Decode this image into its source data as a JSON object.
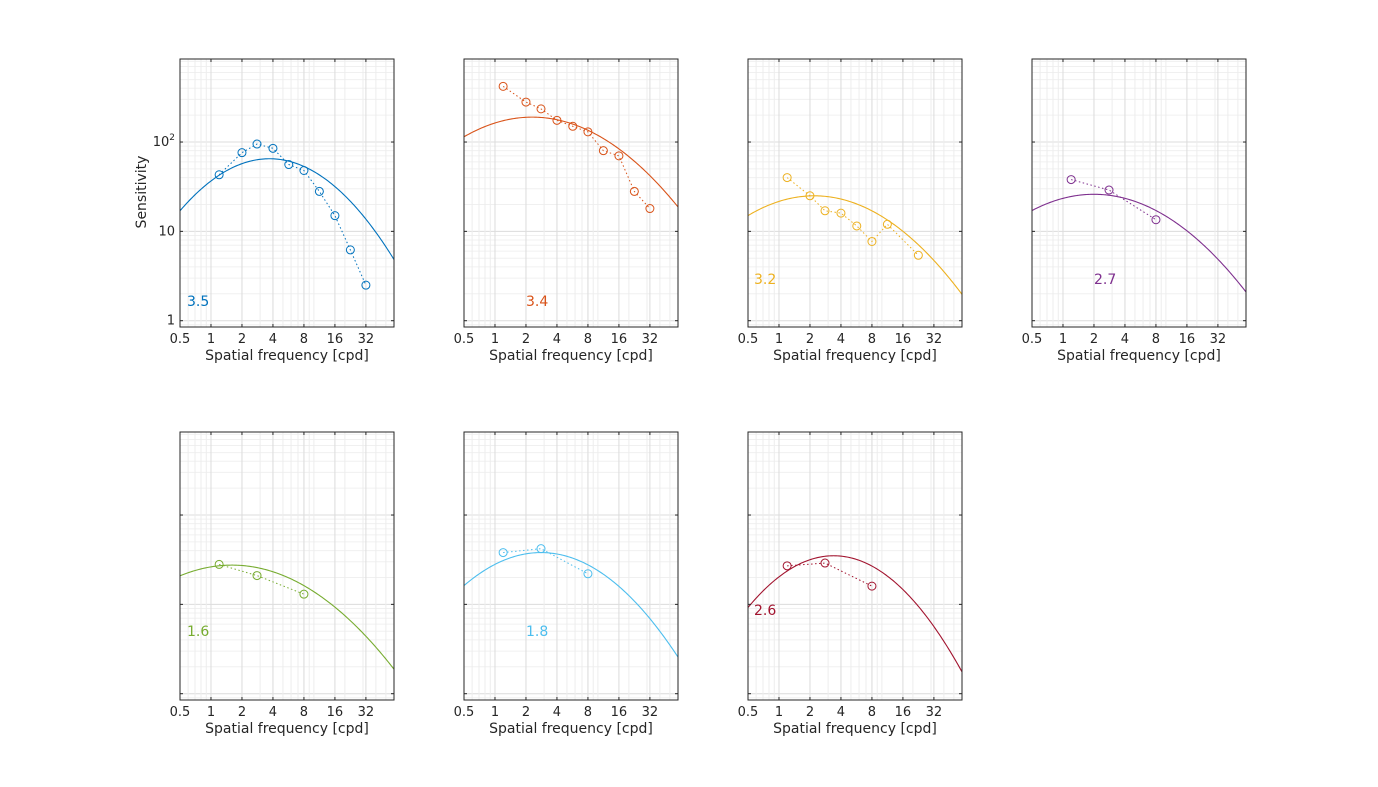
{
  "figure": {
    "shared_xlabel": "Spatial frequency [cpd]",
    "shared_ylabel": "Sensitivity"
  },
  "chart_data": [
    {
      "type": "line",
      "panel_label": "3.5",
      "color": "#0072BD",
      "xlabel": "Spatial frequency [cpd]",
      "ylabel": "Sensitivity",
      "xscale": "log",
      "yscale": "log",
      "xlim": [
        0.5,
        60
      ],
      "ylim": [
        0.85,
        850
      ],
      "xticks": [
        "0.5",
        "1",
        "2",
        "4",
        "8",
        "16",
        "32"
      ],
      "yticks": [
        "1",
        "10",
        "10^2"
      ],
      "grid": true,
      "series": [
        {
          "kind": "measured",
          "marker": "circle",
          "line": "dotted",
          "x": [
            1.2,
            2.0,
            2.8,
            4.0,
            5.7,
            8.0,
            11.3,
            16,
            22.6,
            32
          ],
          "y": [
            43,
            76,
            95,
            85,
            56,
            48,
            28,
            15,
            6.2,
            2.5
          ]
        },
        {
          "kind": "fit",
          "line": "solid",
          "peak_frequency": 3.7,
          "peak_sensitivity": 65,
          "log_bandwidth": 1.25
        }
      ]
    },
    {
      "type": "line",
      "panel_label": "3.4",
      "color": "#D95319",
      "xlabel": "Spatial frequency [cpd]",
      "xscale": "log",
      "yscale": "log",
      "xlim": [
        0.5,
        60
      ],
      "ylim": [
        0.85,
        850
      ],
      "xticks": [
        "0.5",
        "1",
        "2",
        "4",
        "8",
        "16",
        "32"
      ],
      "grid": true,
      "series": [
        {
          "kind": "measured",
          "marker": "circle",
          "line": "dotted",
          "x": [
            1.2,
            2.0,
            2.8,
            4.0,
            5.7,
            8.0,
            11.3,
            16,
            22.6,
            32
          ],
          "y": [
            420,
            280,
            235,
            175,
            150,
            130,
            80,
            70,
            28,
            18
          ]
        },
        {
          "kind": "fit",
          "line": "solid",
          "peak_frequency": 2.3,
          "peak_sensitivity": 190,
          "log_bandwidth": 1.55
        }
      ]
    },
    {
      "type": "line",
      "panel_label": "3.2",
      "color": "#EDB120",
      "xlabel": "Spatial frequency [cpd]",
      "xscale": "log",
      "yscale": "log",
      "xlim": [
        0.5,
        60
      ],
      "ylim": [
        0.85,
        850
      ],
      "xticks": [
        "0.5",
        "1",
        "2",
        "4",
        "8",
        "16",
        "32"
      ],
      "grid": true,
      "series": [
        {
          "kind": "measured",
          "marker": "circle",
          "line": "dotted",
          "x": [
            1.2,
            2.0,
            2.8,
            4.0,
            5.7,
            8.0,
            11.3,
            22.6
          ],
          "y": [
            40,
            25,
            17,
            16,
            11.5,
            7.7,
            12,
            5.4
          ]
        },
        {
          "kind": "fit",
          "line": "solid",
          "peak_frequency": 2.2,
          "peak_sensitivity": 25,
          "log_bandwidth": 1.5
        }
      ]
    },
    {
      "type": "line",
      "panel_label": "2.7",
      "color": "#7E2F8E",
      "xlabel": "Spatial frequency [cpd]",
      "xscale": "log",
      "yscale": "log",
      "xlim": [
        0.5,
        60
      ],
      "ylim": [
        0.85,
        850
      ],
      "xticks": [
        "0.5",
        "1",
        "2",
        "4",
        "8",
        "16",
        "32"
      ],
      "grid": true,
      "series": [
        {
          "kind": "measured",
          "marker": "circle",
          "line": "dotted",
          "x": [
            1.2,
            2.8,
            8.0
          ],
          "y": [
            38,
            29,
            13.5
          ]
        },
        {
          "kind": "fit",
          "line": "solid",
          "peak_frequency": 2.0,
          "peak_sensitivity": 26,
          "log_bandwidth": 1.55
        }
      ]
    },
    {
      "type": "line",
      "panel_label": "1.6",
      "color": "#77AC30",
      "xlabel": "Spatial frequency [cpd]",
      "xscale": "log",
      "yscale": "log",
      "xlim": [
        0.5,
        60
      ],
      "ylim": [
        0.085,
        85
      ],
      "xticks": [
        "0.5",
        "1",
        "2",
        "4",
        "8",
        "16",
        "32"
      ],
      "grid": true,
      "series": [
        {
          "kind": "measured",
          "marker": "circle",
          "line": "dotted",
          "x": [
            1.2,
            2.8,
            8.0
          ],
          "y": [
            2.8,
            2.1,
            1.3
          ]
        },
        {
          "kind": "fit",
          "line": "solid",
          "peak_frequency": 1.6,
          "peak_sensitivity": 2.75,
          "log_bandwidth": 1.6
        }
      ]
    },
    {
      "type": "line",
      "panel_label": "1.8",
      "color": "#4DBEEE",
      "xlabel": "Spatial frequency [cpd]",
      "xscale": "log",
      "yscale": "log",
      "xlim": [
        0.5,
        60
      ],
      "ylim": [
        0.085,
        85
      ],
      "xticks": [
        "0.5",
        "1",
        "2",
        "4",
        "8",
        "16",
        "32"
      ],
      "grid": true,
      "series": [
        {
          "kind": "measured",
          "marker": "circle",
          "line": "dotted",
          "x": [
            1.2,
            2.8,
            8.0
          ],
          "y": [
            3.8,
            4.2,
            2.2
          ]
        },
        {
          "kind": "fit",
          "line": "solid",
          "peak_frequency": 2.8,
          "peak_sensitivity": 3.8,
          "log_bandwidth": 1.35
        }
      ]
    },
    {
      "type": "line",
      "panel_label": "2.6",
      "color": "#A2142F",
      "xlabel": "Spatial frequency [cpd]",
      "xscale": "log",
      "yscale": "log",
      "xlim": [
        0.5,
        60
      ],
      "ylim": [
        0.085,
        85
      ],
      "xticks": [
        "0.5",
        "1",
        "2",
        "4",
        "8",
        "16",
        "32"
      ],
      "grid": true,
      "series": [
        {
          "kind": "measured",
          "marker": "circle",
          "line": "dotted",
          "x": [
            1.2,
            2.8,
            8.0
          ],
          "y": [
            2.7,
            2.9,
            1.6
          ]
        },
        {
          "kind": "fit",
          "line": "solid",
          "peak_frequency": 3.4,
          "peak_sensitivity": 3.5,
          "log_bandwidth": 1.2
        }
      ]
    }
  ]
}
